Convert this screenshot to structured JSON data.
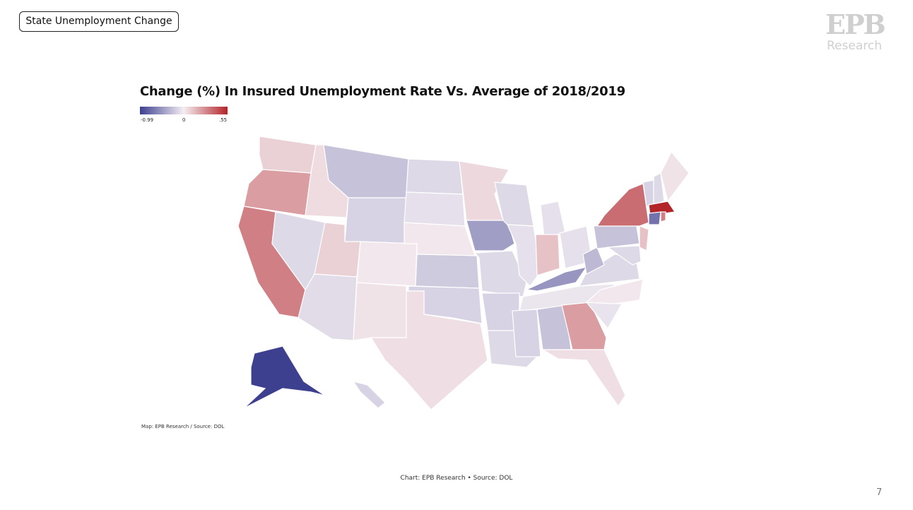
{
  "slide_tag": "State Unemployment Change",
  "logo": {
    "letters": "EPB",
    "sub": "Research"
  },
  "chart_data": {
    "type": "choropleth",
    "title": "Change (%) In Insured Unemployment Rate Vs. Average of 2018/2019",
    "legend": {
      "min_label": "-0.99",
      "mid_label": "0",
      "max_label": ".55",
      "min": -0.99,
      "mid": 0,
      "max": 0.55,
      "colors": {
        "low": "#3d3f8f",
        "mid": "#f4eef3",
        "high": "#b22428"
      }
    },
    "values": {
      "WA": 0.08,
      "OR": 0.22,
      "CA": 0.3,
      "ID": 0.05,
      "NV": -0.12,
      "MT": -0.25,
      "WY": -0.15,
      "UT": 0.08,
      "AZ": -0.1,
      "CO": 0.02,
      "NM": 0.03,
      "ND": -0.12,
      "SD": -0.08,
      "NE": 0.02,
      "KS": -0.2,
      "OK": -0.15,
      "TX": 0.04,
      "MN": 0.06,
      "IA": -0.45,
      "MO": -0.12,
      "AR": -0.15,
      "LA": -0.12,
      "WI": -0.12,
      "IL": -0.08,
      "MI": -0.08,
      "IN": 0.12,
      "OH": -0.08,
      "KY": -0.5,
      "TN": -0.05,
      "MS": -0.15,
      "AL": -0.25,
      "GA": 0.22,
      "FL": 0.04,
      "SC": -0.06,
      "NC": 0.02,
      "VA": -0.12,
      "WV": -0.3,
      "PA": -0.25,
      "NY": 0.35,
      "NJ": 0.12,
      "MD": -0.12,
      "VT": -0.15,
      "NH": -0.12,
      "ME": 0.03,
      "MA": 0.55,
      "CT": -0.7,
      "RI": 0.3,
      "AK": -0.99,
      "HI": -0.15
    },
    "source_note": "Map: EPB Research / Source: DOL"
  },
  "footer": "Chart: EPB Research •  Source: DOL",
  "page_number": "7"
}
